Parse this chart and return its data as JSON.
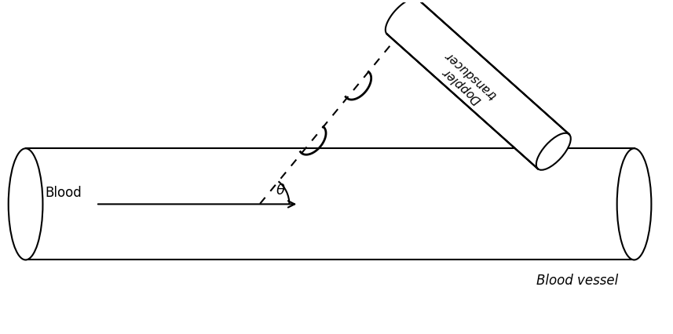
{
  "bg_color": "#ffffff",
  "line_color": "#000000",
  "figsize": [
    8.57,
    4.26
  ],
  "dpi": 100,
  "tube_label": "Blood vessel",
  "blood_label": "Blood",
  "transducer_label": "Doppler\ntransducer",
  "theta_label": "θ"
}
